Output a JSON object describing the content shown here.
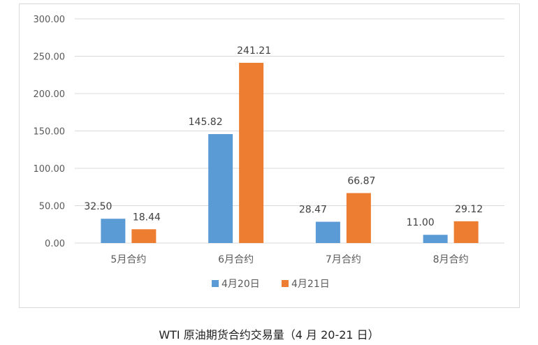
{
  "caption": "WTI 原油期货合约交易量（4 月 20-21 日）",
  "chart_data": {
    "type": "bar",
    "categories": [
      "5月合约",
      "6月合约",
      "7月合约",
      "8月合约"
    ],
    "series": [
      {
        "name": "4月20日",
        "values": [
          32.5,
          145.82,
          28.47,
          11.0
        ],
        "labels": [
          "32.50",
          "145.82",
          "28.47",
          "11.00"
        ],
        "color": "#5b9bd5"
      },
      {
        "name": "4月21日",
        "values": [
          18.44,
          241.21,
          66.87,
          29.12
        ],
        "labels": [
          "18.44",
          "241.21",
          "66.87",
          "29.12"
        ],
        "color": "#ed7d31"
      }
    ],
    "ylim": [
      0,
      300
    ],
    "yticks": [
      0,
      50,
      100,
      150,
      200,
      250,
      300
    ],
    "ytick_labels": [
      "0.00",
      "50.00",
      "100.00",
      "150.00",
      "200.00",
      "250.00",
      "300.00"
    ],
    "grid": true,
    "legend": "bottom",
    "gridline_color": "#d9d9d9"
  }
}
